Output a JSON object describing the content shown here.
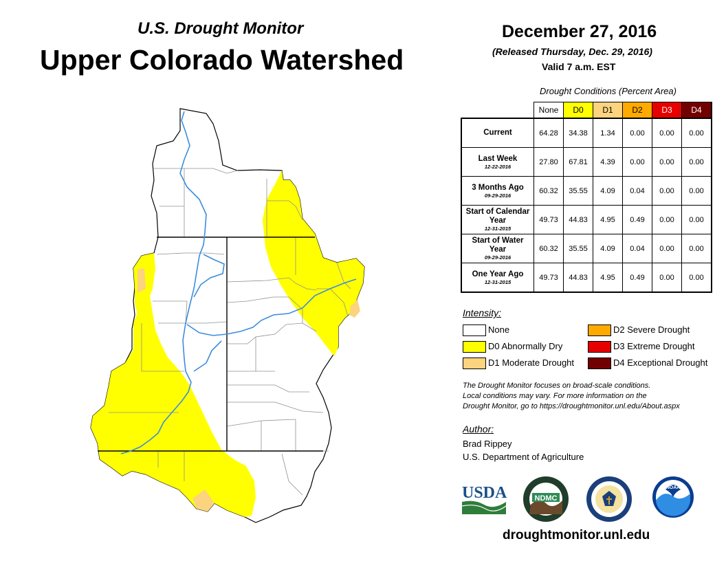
{
  "header": {
    "subtitle": "U.S. Drought Monitor",
    "title": "Upper Colorado Watershed",
    "date": "December 27, 2016",
    "released": "(Released Thursday, Dec. 29, 2016)",
    "valid": "Valid 7 a.m. EST"
  },
  "table": {
    "caption": "Drought Conditions (Percent Area)",
    "columns": [
      "None",
      "D0",
      "D1",
      "D2",
      "D3",
      "D4"
    ],
    "column_colors": [
      "#ffffff",
      "#ffff00",
      "#fcd37f",
      "#ffaa00",
      "#e60000",
      "#730000"
    ],
    "rows": [
      {
        "label": "Current",
        "date": "",
        "values": [
          "64.28",
          "34.38",
          "1.34",
          "0.00",
          "0.00",
          "0.00"
        ]
      },
      {
        "label": "Last Week",
        "date": "12-22-2016",
        "values": [
          "27.80",
          "67.81",
          "4.39",
          "0.00",
          "0.00",
          "0.00"
        ]
      },
      {
        "label": "3 Months Ago",
        "date": "09-29-2016",
        "values": [
          "60.32",
          "35.55",
          "4.09",
          "0.04",
          "0.00",
          "0.00"
        ]
      },
      {
        "label": "Start of Calendar Year",
        "date": "12-31-2015",
        "values": [
          "49.73",
          "44.83",
          "4.95",
          "0.49",
          "0.00",
          "0.00"
        ]
      },
      {
        "label": "Start of Water Year",
        "date": "09-29-2016",
        "values": [
          "60.32",
          "35.55",
          "4.09",
          "0.04",
          "0.00",
          "0.00"
        ]
      },
      {
        "label": "One Year Ago",
        "date": "12-31-2015",
        "values": [
          "49.73",
          "44.83",
          "4.95",
          "0.49",
          "0.00",
          "0.00"
        ]
      }
    ]
  },
  "legend": {
    "title": "Intensity:",
    "items": [
      {
        "label": "None",
        "color": "#ffffff"
      },
      {
        "label": "D0 Abnormally Dry",
        "color": "#ffff00"
      },
      {
        "label": "D1 Moderate Drought",
        "color": "#fcd37f"
      },
      {
        "label": "D2 Severe Drought",
        "color": "#ffaa00"
      },
      {
        "label": "D3 Extreme Drought",
        "color": "#e60000"
      },
      {
        "label": "D4 Exceptional Drought",
        "color": "#730000"
      }
    ]
  },
  "note": [
    "The Drought Monitor focuses on broad-scale conditions.",
    "Local conditions may vary. For more information on the",
    "Drought Monitor, go to https://droughtmonitor.unl.edu/About.aspx"
  ],
  "author": {
    "title": "Author:",
    "name": "Brad Rippey",
    "org": "U.S. Department of Agriculture"
  },
  "logos": {
    "usda": "USDA",
    "ndmc": "NDMC",
    "noaa": "NOAA"
  },
  "footer_url": "droughtmonitor.unl.edu",
  "map": {
    "river_color": "#3c8cdc",
    "border_color": "#000000",
    "county_line_color": "#909090"
  }
}
